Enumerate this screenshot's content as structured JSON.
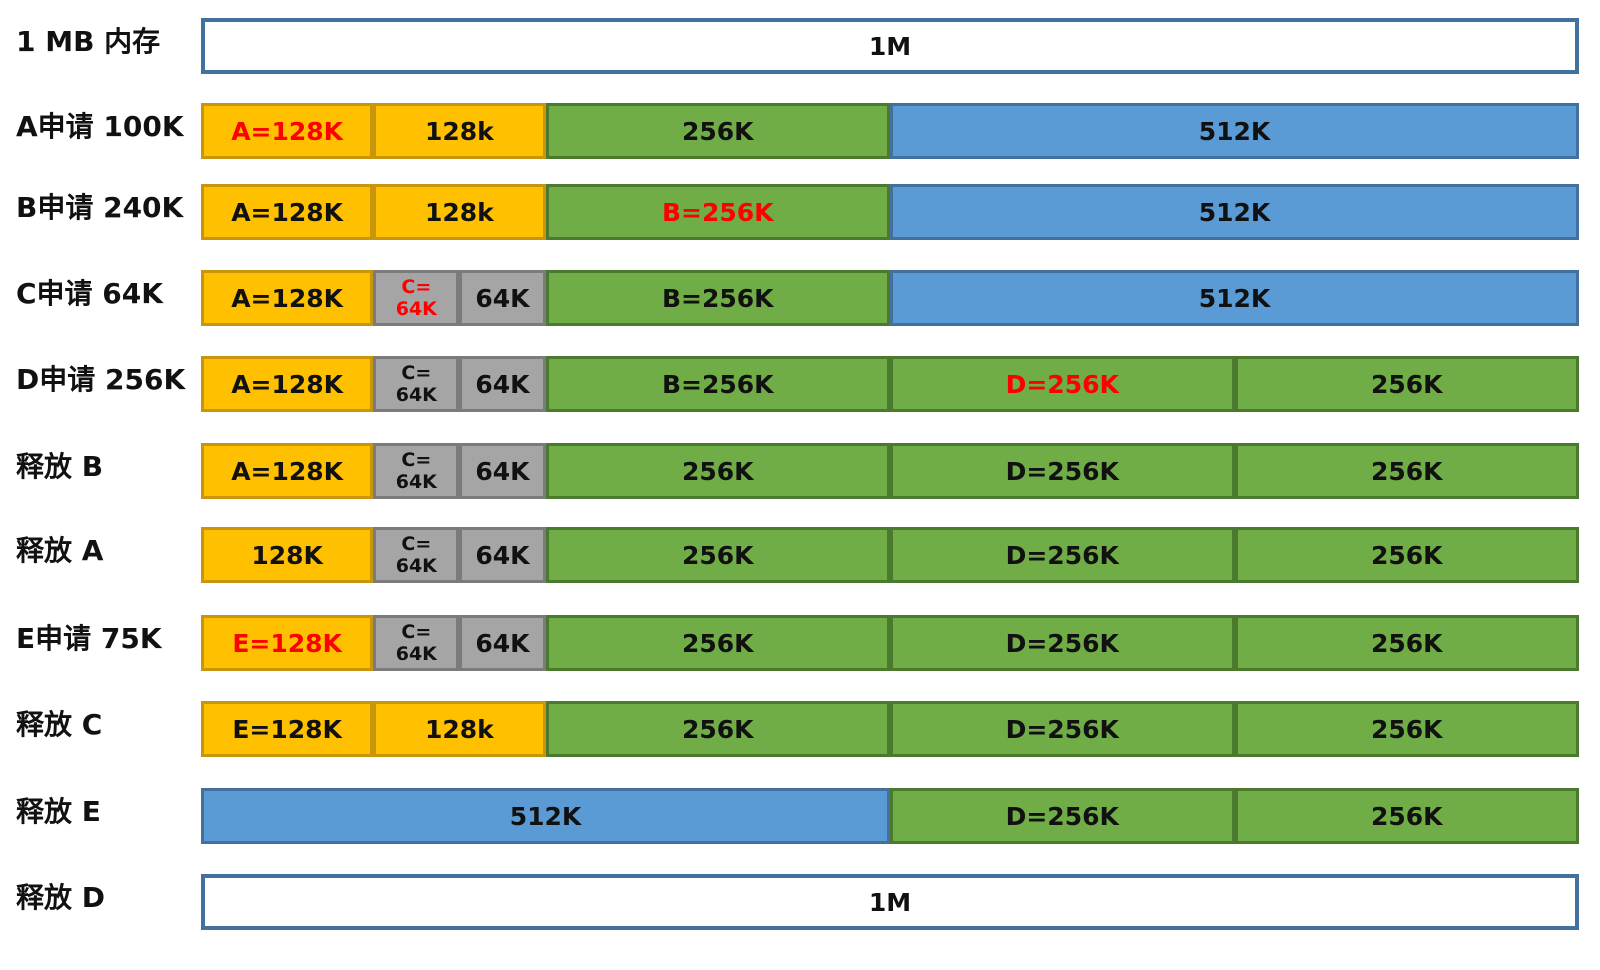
{
  "palette": {
    "white": "#ffffff",
    "yellow": "#ffc000",
    "green": "#70ad47",
    "blue": "#5b9bd5",
    "gray": "#a5a5a5",
    "highlight_text": "#ff0000"
  },
  "rows": [
    {
      "label": "1 MB 内存",
      "blocks": [
        {
          "text": "1M",
          "color": "white",
          "size_k": 1024
        }
      ]
    },
    {
      "label": "A申请 100K",
      "blocks": [
        {
          "text": "A=128K",
          "color": "yellow",
          "size_k": 128,
          "highlight": true
        },
        {
          "text": "128k",
          "color": "yellow",
          "size_k": 128
        },
        {
          "text": "256K",
          "color": "green",
          "size_k": 256
        },
        {
          "text": "512K",
          "color": "blue",
          "size_k": 512
        }
      ]
    },
    {
      "label": "B申请 240K",
      "blocks": [
        {
          "text": "A=128K",
          "color": "yellow",
          "size_k": 128
        },
        {
          "text": "128k",
          "color": "yellow",
          "size_k": 128
        },
        {
          "text": "B=256K",
          "color": "green",
          "size_k": 256,
          "highlight": true
        },
        {
          "text": "512K",
          "color": "blue",
          "size_k": 512
        }
      ]
    },
    {
      "label": "C申请 64K",
      "blocks": [
        {
          "text": "A=128K",
          "color": "yellow",
          "size_k": 128
        },
        {
          "lines": [
            "C=",
            "64K"
          ],
          "color": "gray",
          "size_k": 64,
          "highlight": true
        },
        {
          "text": "64K",
          "color": "gray",
          "size_k": 64
        },
        {
          "text": "B=256K",
          "color": "green",
          "size_k": 256
        },
        {
          "text": "512K",
          "color": "blue",
          "size_k": 512
        }
      ]
    },
    {
      "label": "D申请 256K",
      "blocks": [
        {
          "text": "A=128K",
          "color": "yellow",
          "size_k": 128
        },
        {
          "lines": [
            "C=",
            "64K"
          ],
          "color": "gray",
          "size_k": 64
        },
        {
          "text": "64K",
          "color": "gray",
          "size_k": 64
        },
        {
          "text": "B=256K",
          "color": "green",
          "size_k": 256
        },
        {
          "text": "D=256K",
          "color": "green",
          "size_k": 256,
          "highlight": true
        },
        {
          "text": "256K",
          "color": "green",
          "size_k": 256
        }
      ]
    },
    {
      "label": "释放 B",
      "blocks": [
        {
          "text": "A=128K",
          "color": "yellow",
          "size_k": 128
        },
        {
          "lines": [
            "C=",
            "64K"
          ],
          "color": "gray",
          "size_k": 64
        },
        {
          "text": "64K",
          "color": "gray",
          "size_k": 64
        },
        {
          "text": "256K",
          "color": "green",
          "size_k": 256
        },
        {
          "text": "D=256K",
          "color": "green",
          "size_k": 256
        },
        {
          "text": "256K",
          "color": "green",
          "size_k": 256
        }
      ]
    },
    {
      "label": "释放 A",
      "blocks": [
        {
          "text": "128K",
          "color": "yellow",
          "size_k": 128
        },
        {
          "lines": [
            "C=",
            "64K"
          ],
          "color": "gray",
          "size_k": 64
        },
        {
          "text": "64K",
          "color": "gray",
          "size_k": 64
        },
        {
          "text": "256K",
          "color": "green",
          "size_k": 256
        },
        {
          "text": "D=256K",
          "color": "green",
          "size_k": 256
        },
        {
          "text": "256K",
          "color": "green",
          "size_k": 256
        }
      ]
    },
    {
      "label": "E申请 75K",
      "blocks": [
        {
          "text": "E=128K",
          "color": "yellow",
          "size_k": 128,
          "highlight": true
        },
        {
          "lines": [
            "C=",
            "64K"
          ],
          "color": "gray",
          "size_k": 64
        },
        {
          "text": "64K",
          "color": "gray",
          "size_k": 64
        },
        {
          "text": "256K",
          "color": "green",
          "size_k": 256
        },
        {
          "text": "D=256K",
          "color": "green",
          "size_k": 256
        },
        {
          "text": "256K",
          "color": "green",
          "size_k": 256
        }
      ]
    },
    {
      "label": "释放 C",
      "blocks": [
        {
          "text": "E=128K",
          "color": "yellow",
          "size_k": 128
        },
        {
          "text": "128k",
          "color": "yellow",
          "size_k": 128
        },
        {
          "text": "256K",
          "color": "green",
          "size_k": 256
        },
        {
          "text": "D=256K",
          "color": "green",
          "size_k": 256
        },
        {
          "text": "256K",
          "color": "green",
          "size_k": 256
        }
      ]
    },
    {
      "label": "释放 E",
      "blocks": [
        {
          "text": "512K",
          "color": "blue",
          "size_k": 512
        },
        {
          "text": "D=256K",
          "color": "green",
          "size_k": 256
        },
        {
          "text": "256K",
          "color": "green",
          "size_k": 256
        }
      ]
    },
    {
      "label": "释放 D",
      "blocks": [
        {
          "text": "1M",
          "color": "white",
          "size_k": 1024
        }
      ]
    }
  ]
}
